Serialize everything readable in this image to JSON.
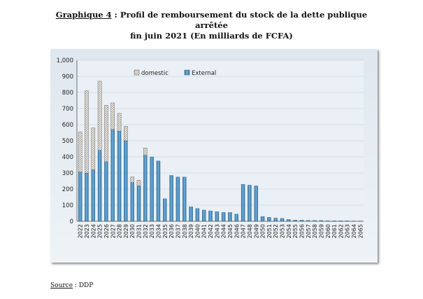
{
  "heading": {
    "label": "Graphique 4",
    "text_line1": " : Profil de remboursement du stock de la dette publique arrêtée",
    "text_line2": "fin juin  2021 (En milliards de FCFA)"
  },
  "source": {
    "label": "Source",
    "text": " : DDP"
  },
  "chart_data": {
    "type": "bar",
    "stacked": true,
    "legend_position": "top-left",
    "grid": true,
    "xlabel": "",
    "ylabel": "",
    "ylim": [
      0,
      1000
    ],
    "yticks": [
      "0",
      "100",
      "200",
      "300",
      "400",
      "500",
      "600",
      "700",
      "800",
      "900",
      "1,000"
    ],
    "categories": [
      "2022",
      "2023",
      "2024",
      "2025",
      "2026",
      "2027",
      "2028",
      "2029",
      "2030",
      "2031",
      "2032",
      "2033",
      "2034",
      "2035",
      "2036",
      "2037",
      "2038",
      "2039",
      "2040",
      "2041",
      "2042",
      "2043",
      "2044",
      "2045",
      "2046",
      "2047",
      "2048",
      "2049",
      "2050",
      "2051",
      "2052",
      "2053",
      "2054",
      "2055",
      "2056",
      "2057",
      "2058",
      "2059",
      "2060",
      "2061",
      "2062",
      "2063",
      "2064",
      "2065"
    ],
    "series": [
      {
        "name": "External",
        "color": "#5b9bd5",
        "values": [
          305,
          300,
          320,
          440,
          370,
          570,
          560,
          500,
          240,
          220,
          410,
          400,
          375,
          140,
          285,
          275,
          275,
          90,
          80,
          70,
          65,
          60,
          55,
          55,
          45,
          230,
          225,
          220,
          30,
          25,
          20,
          18,
          12,
          8,
          7,
          6,
          5,
          5,
          4,
          3,
          3,
          3,
          2,
          2
        ]
      },
      {
        "name": "domestic",
        "color": "#e8e0d0",
        "values": [
          250,
          510,
          260,
          430,
          350,
          165,
          110,
          90,
          35,
          35,
          45,
          0,
          0,
          0,
          0,
          0,
          0,
          0,
          0,
          0,
          0,
          0,
          0,
          0,
          0,
          0,
          0,
          0,
          0,
          0,
          0,
          0,
          0,
          0,
          0,
          0,
          0,
          0,
          0,
          0,
          0,
          0,
          0,
          0
        ]
      }
    ],
    "legend": [
      {
        "name": "domestic",
        "icon": "hatched-swatch"
      },
      {
        "name": "External",
        "icon": "blue-swatch"
      }
    ]
  }
}
